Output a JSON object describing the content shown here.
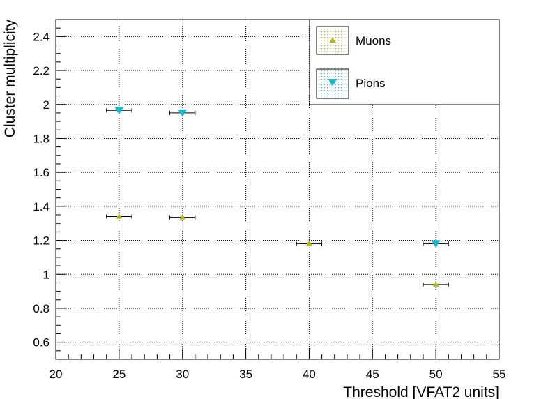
{
  "chart_data": {
    "type": "scatter",
    "title": "",
    "xlabel": "Threshold [VFAT2 units]",
    "ylabel": "Cluster multiplicity",
    "xlim": [
      20,
      55
    ],
    "ylim": [
      0.5,
      2.5
    ],
    "x_ticks": [
      "20",
      "25",
      "30",
      "35",
      "40",
      "45",
      "50",
      "55"
    ],
    "y_ticks": [
      "0.6",
      "0.8",
      "1",
      "1.2",
      "1.4",
      "1.6",
      "1.8",
      "2",
      "2.2",
      "2.4"
    ],
    "grid": true,
    "legend_position": "top-right",
    "x_error": 1,
    "series": [
      {
        "name": "Muons",
        "marker": "triangle-up",
        "color": "#b5b521",
        "x": [
          25,
          30,
          40,
          50
        ],
        "y": [
          1.34,
          1.335,
          1.18,
          0.94
        ]
      },
      {
        "name": "Pions",
        "marker": "triangle-down",
        "color": "#1fb8c9",
        "x": [
          25,
          30,
          50
        ],
        "y": [
          1.965,
          1.95,
          1.18
        ]
      }
    ]
  }
}
